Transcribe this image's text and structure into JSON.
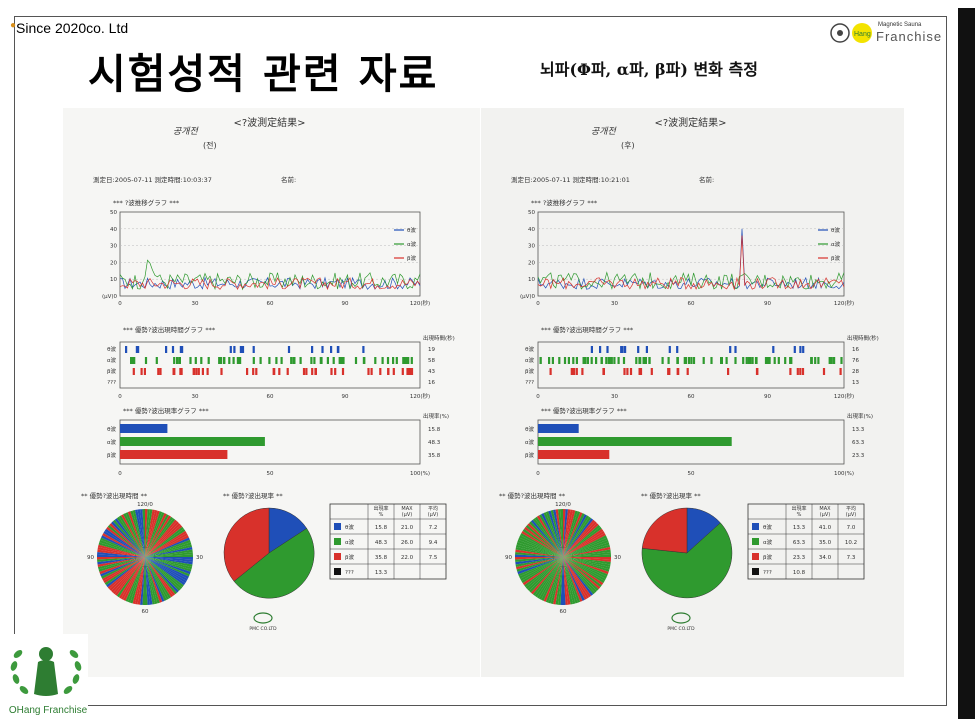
{
  "header": {
    "since": "Since 2020co. Ltd",
    "brand_small": "Magnetic Sauna",
    "brand_large": "Franchise",
    "brand_badge": "Hang"
  },
  "title": "시험성적 관련 자료",
  "subtitle": "뇌파(Φ파, α파, β파) 변화 측정",
  "footer_logo": {
    "caption": "OHang Franchise"
  },
  "colors": {
    "theta": "#1f4fb8",
    "alpha": "#2f9a2f",
    "beta": "#d8312b",
    "other": "#111111"
  },
  "reports": [
    {
      "heading": "<?波測定結果>",
      "handwriting": "공개전\n(전)",
      "date_line": "測定日:2005-07-11   測定時間:10:03:37",
      "name_label": "名前:",
      "trend_title": "*** ?波推移グラフ ***",
      "trend_y_ticks": [
        "50",
        "40",
        "30",
        "20",
        "10",
        "(μV)0"
      ],
      "trend_x_ticks": [
        "0",
        "30",
        "60",
        "90",
        "120(秒)"
      ],
      "legend": [
        "θ波",
        "α波",
        "β波"
      ],
      "time_title": "*** 優勢?波出現時間グラフ ***",
      "time_header": "出現時間(秒)",
      "row_labels": [
        "θ波",
        "α波",
        "β波",
        "???"
      ],
      "time_values": [
        "19",
        "58",
        "43",
        "16"
      ],
      "rate_title": "*** 優勢?波出現率グラフ ***",
      "rate_header": "出現率(%)",
      "rate_values": [
        "15.8",
        "48.3",
        "35.8"
      ],
      "rate_x_ticks": [
        "0",
        "50",
        "100(%)"
      ],
      "pie1_title": "** 優勢?波出現時間 **",
      "pie2_title": "** 優勢?波出現率 **",
      "dial_labels": [
        "120/0",
        "30",
        "60",
        "90"
      ],
      "table_header": [
        "出現率\n%",
        "MAX\n(μV)",
        "平均\n(μV)"
      ],
      "table_rows": [
        [
          "θ波",
          "15.8",
          "21.0",
          "7.2"
        ],
        [
          "α波",
          "48.3",
          "26.0",
          "9.4"
        ],
        [
          "β波",
          "35.8",
          "22.0",
          "7.5"
        ],
        [
          "???",
          "13.3",
          "",
          ""
        ]
      ],
      "maker": "PMC CO.LTD",
      "rates": [
        15.8,
        48.3,
        35.8
      ]
    },
    {
      "heading": "<?波測定結果>",
      "handwriting": "공개전\n(후)",
      "date_line": "測定日:2005-07-11   測定時間:10:21:01",
      "name_label": "名前:",
      "trend_title": "*** ?波推移グラフ ***",
      "trend_y_ticks": [
        "50",
        "40",
        "30",
        "20",
        "10",
        "(μV)0"
      ],
      "trend_x_ticks": [
        "0",
        "30",
        "60",
        "90",
        "120(秒)"
      ],
      "legend": [
        "θ波",
        "α波",
        "β波"
      ],
      "time_title": "*** 優勢?波出現時間グラフ ***",
      "time_header": "出現時間(秒)",
      "row_labels": [
        "θ波",
        "α波",
        "β波",
        "???"
      ],
      "time_values": [
        "16",
        "76",
        "28",
        "13"
      ],
      "rate_title": "*** 優勢?波出現率グラフ ***",
      "rate_header": "出現率(%)",
      "rate_values": [
        "13.3",
        "63.3",
        "23.3"
      ],
      "rate_x_ticks": [
        "0",
        "50",
        "100(%)"
      ],
      "pie1_title": "** 優勢?波出現時間 **",
      "pie2_title": "** 優勢?波出現率 **",
      "dial_labels": [
        "120/0",
        "30",
        "60",
        "90"
      ],
      "table_header": [
        "出現率\n%",
        "MAX\n(μV)",
        "平均\n(μV)"
      ],
      "table_rows": [
        [
          "θ波",
          "13.3",
          "41.0",
          "7.0"
        ],
        [
          "α波",
          "63.3",
          "35.0",
          "10.2"
        ],
        [
          "β波",
          "23.3",
          "34.0",
          "7.3"
        ],
        [
          "???",
          "10.8",
          "",
          ""
        ]
      ],
      "maker": "PMC CO.LTD",
      "rates": [
        13.3,
        63.3,
        23.3
      ]
    }
  ]
}
